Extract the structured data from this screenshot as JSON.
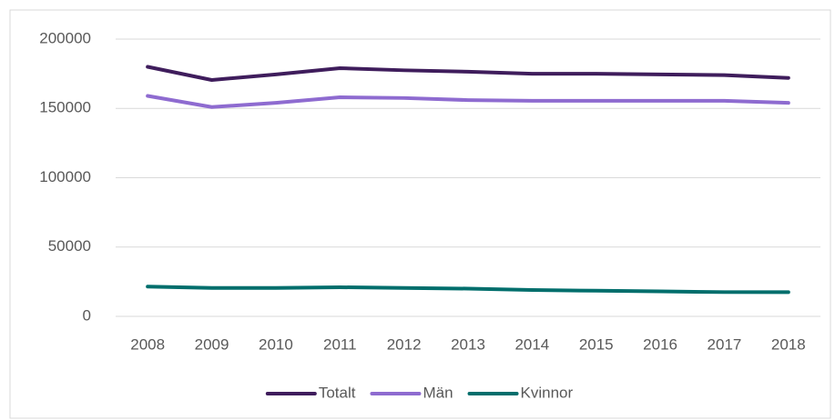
{
  "chart_data": {
    "type": "line",
    "categories": [
      "2008",
      "2009",
      "2010",
      "2011",
      "2012",
      "2013",
      "2014",
      "2015",
      "2016",
      "2017",
      "2018"
    ],
    "series": [
      {
        "name": "Totalt",
        "color": "#3f1d5c",
        "values": [
          180000,
          170500,
          174500,
          179000,
          177500,
          176500,
          175000,
          175000,
          174500,
          174000,
          172000
        ]
      },
      {
        "name": "Män",
        "color": "#8e6bd0",
        "values": [
          159000,
          151000,
          154000,
          158000,
          157500,
          156000,
          155500,
          155500,
          155500,
          155500,
          154000
        ]
      },
      {
        "name": "Kvinnor",
        "color": "#006e6c",
        "values": [
          21500,
          20500,
          20500,
          21000,
          20500,
          20000,
          19000,
          18500,
          18000,
          17500,
          17500
        ]
      }
    ],
    "ylim": [
      0,
      200000
    ],
    "yticks": [
      0,
      50000,
      100000,
      150000,
      200000
    ],
    "grid": true,
    "legend": "bottom"
  }
}
